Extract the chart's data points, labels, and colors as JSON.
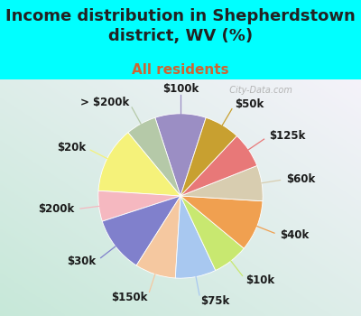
{
  "title": "Income distribution in Shepherdstown\ndistrict, WV (%)",
  "subtitle": "All residents",
  "background_color": "#00FFFF",
  "chart_bg_colors": [
    "#e8f5ee",
    "#d0ede0",
    "#c8eae8",
    "#daf5f5"
  ],
  "labels": [
    "$100k",
    "> $200k",
    "$20k",
    "$200k",
    "$30k",
    "$150k",
    "$75k",
    "$10k",
    "$40k",
    "$60k",
    "$125k",
    "$50k"
  ],
  "sizes": [
    10,
    6,
    13,
    6,
    11,
    8,
    8,
    7,
    10,
    7,
    7,
    7
  ],
  "colors": [
    "#9b8ec4",
    "#b5c9a8",
    "#f5f27a",
    "#f5b8c0",
    "#8080cc",
    "#f5c8a0",
    "#a8c8f0",
    "#c8e870",
    "#f0a050",
    "#d8cdb0",
    "#e87878",
    "#c8a030"
  ],
  "startangle": 72,
  "watermark": "  City-Data.com",
  "title_fontsize": 13,
  "subtitle_fontsize": 11,
  "subtitle_color": "#cc6633",
  "label_fontsize": 8.5,
  "title_color": "#222222"
}
